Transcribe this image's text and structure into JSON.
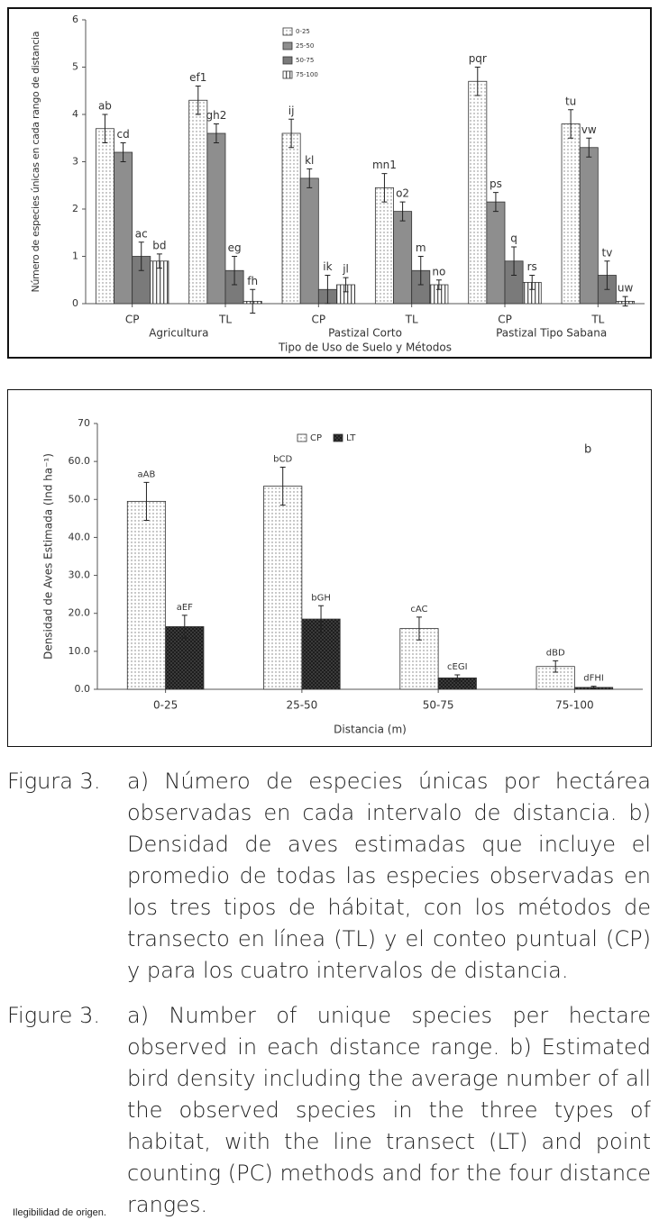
{
  "chart_data": [
    {
      "type": "bar",
      "y_label": "Número de especies únicas en cada rango de distancia",
      "x_label": "Tipo de Uso de Suelo y Métodos",
      "categories": [
        "CP",
        "TL",
        "CP",
        "TL",
        "CP",
        "TL"
      ],
      "group_labels": [
        "Agricultura",
        "Pastizal Corto",
        "Pastizal Tipo Sabana"
      ],
      "ylim": [
        0,
        6
      ],
      "yticks": [
        0,
        1,
        2,
        3,
        4,
        5,
        6
      ],
      "series": [
        {
          "name": "0-25",
          "color": "#7d7d7d",
          "pattern": "dots",
          "values": [
            3.7,
            4.3,
            3.6,
            2.45,
            4.7,
            3.8
          ],
          "errors": [
            0.3,
            0.3,
            0.3,
            0.3,
            0.3,
            0.3
          ],
          "letters": [
            "ab",
            "ef1",
            "ij",
            "mn1",
            "pqr",
            "tu"
          ]
        },
        {
          "name": "25-50",
          "color": "#8e8e8e",
          "pattern": "solid",
          "values": [
            3.2,
            3.6,
            2.65,
            1.95,
            2.15,
            3.3
          ],
          "errors": [
            0.2,
            0.2,
            0.2,
            0.2,
            0.2,
            0.2
          ],
          "letters": [
            "cd",
            "gh2",
            "kl",
            "o2",
            "ps",
            "vw"
          ]
        },
        {
          "name": "50-75",
          "color": "#7a7a7a",
          "pattern": "solid",
          "values": [
            1.0,
            0.7,
            0.3,
            0.7,
            0.9,
            0.6
          ],
          "errors": [
            0.3,
            0.3,
            0.3,
            0.3,
            0.3,
            0.3
          ],
          "letters": [
            "ac",
            "eg",
            "ik",
            "m",
            "q",
            "tv"
          ]
        },
        {
          "name": "75-100",
          "color": "#555555",
          "pattern": "vlines",
          "values": [
            0.9,
            0.05,
            0.4,
            0.4,
            0.45,
            0.05
          ],
          "errors": [
            0.15,
            0.25,
            0.15,
            0.1,
            0.15,
            0.1
          ],
          "letters": [
            "bd",
            "fh",
            "jl",
            "no",
            "rs",
            "uw"
          ]
        }
      ]
    },
    {
      "type": "bar",
      "annotation": "b",
      "y_label": "Densidad de Aves Estimada (Ind ha⁻¹)",
      "x_label": "Distancia (m)",
      "categories": [
        "0-25",
        "25-50",
        "50-75",
        "75-100"
      ],
      "ylim": [
        0,
        70
      ],
      "yticks": [
        {
          "value": 0,
          "label": "0.0"
        },
        {
          "value": 10,
          "label": "10.0"
        },
        {
          "value": 20,
          "label": "20.0"
        },
        {
          "value": 30,
          "label": "30.0"
        },
        {
          "value": 40,
          "label": "40.0"
        },
        {
          "value": 50,
          "label": "50.0"
        },
        {
          "value": 60,
          "label": "60.0"
        },
        70
      ],
      "series": [
        {
          "name": "CP",
          "color": "#777777",
          "pattern": "dots",
          "values": [
            49.5,
            53.5,
            16,
            6
          ],
          "errors": [
            5,
            5,
            3,
            1.5
          ],
          "letters": [
            "aAB",
            "bCD",
            "cAC",
            "dBD"
          ]
        },
        {
          "name": "LT",
          "color": "#1e1e1e",
          "pattern": "crosshatch",
          "values": [
            16.5,
            18.5,
            3,
            0.5
          ],
          "errors": [
            3,
            3.5,
            0.8,
            0.3
          ],
          "letters": [
            "aEF",
            "bGH",
            "cEGI",
            "dFHI"
          ]
        }
      ]
    }
  ],
  "caption_es": {
    "label": "Figura 3.",
    "text": "a) Número de especies únicas por hectárea observadas en cada intervalo de distancia. b) Densidad de aves estimadas que incluye el promedio de todas las especies observadas en los tres tipos de hábitat, con los métodos de transecto en línea (TL) y el conteo puntual (CP) y para los cuatro intervalos de distancia."
  },
  "caption_en": {
    "label": "Figure 3.",
    "text": "a) Number of unique species per hectare observed in each distance range. b) Estimated bird density including the average number of all the observed species in the three types of habitat, with the line transect (LT) and point counting (PC) methods and for the four distance ranges."
  },
  "footer": "Ilegibilidad de origen."
}
